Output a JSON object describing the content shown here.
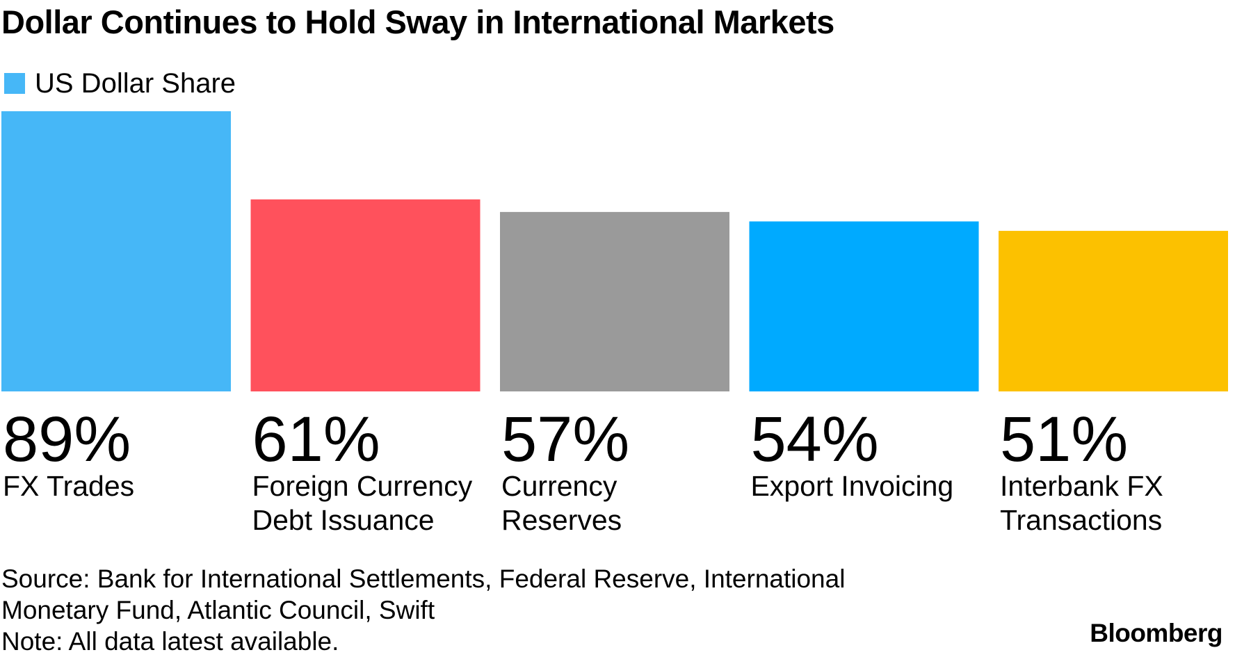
{
  "title": "Dollar Continues to Hold Sway in International Markets",
  "legend": {
    "label": "US Dollar Share",
    "color": "#46b7f7"
  },
  "chart_data": {
    "type": "bar",
    "title": "Dollar Continues to Hold Sway in International Markets",
    "categories": [
      [
        "FX Trades"
      ],
      [
        "Foreign Currency",
        "Debt Issuance"
      ],
      [
        "Currency",
        "Reserves"
      ],
      [
        "Export Invoicing"
      ],
      [
        "Interbank FX",
        "Transactions"
      ]
    ],
    "series": [
      {
        "name": "US Dollar Share",
        "values": [
          89,
          61,
          57,
          54,
          51
        ]
      }
    ],
    "value_labels": [
      "89%",
      "61%",
      "57%",
      "54%",
      "51%"
    ],
    "bar_colors": [
      "#46b7f7",
      "#ff515c",
      "#9a9a9a",
      "#00aaff",
      "#fcc100"
    ],
    "ylim": [
      0,
      89
    ],
    "grid": false,
    "legend_position": "top-left"
  },
  "footer": {
    "source_lines": [
      "Source: Bank for International Settlements, Federal Reserve, International",
      "Monetary Fund, Atlantic Council, Swift",
      "Note: All data latest available."
    ],
    "brand": "Bloomberg"
  }
}
